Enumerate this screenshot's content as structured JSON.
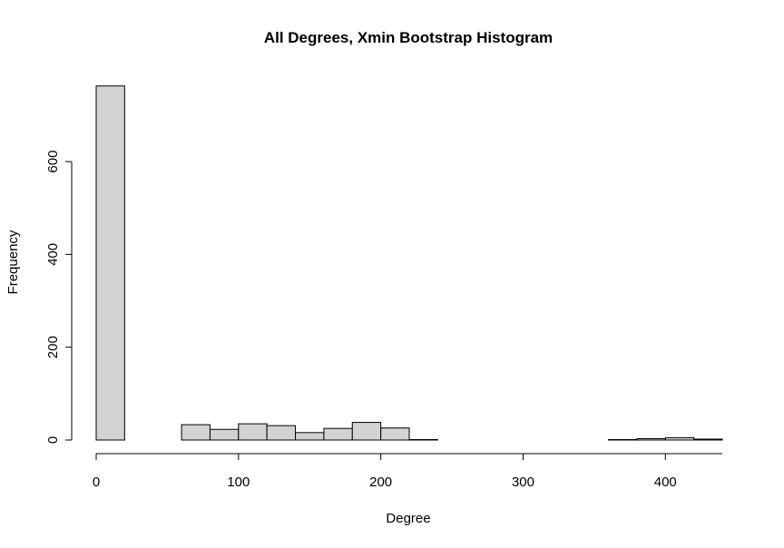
{
  "chart_data": {
    "type": "bar",
    "title": "All Degrees, Xmin Bootstrap Histogram",
    "xlabel": "Degree",
    "ylabel": "Frequency",
    "bin_width": 20,
    "bins": [
      {
        "start": 0,
        "end": 20,
        "count": 763
      },
      {
        "start": 20,
        "end": 40,
        "count": 0
      },
      {
        "start": 40,
        "end": 60,
        "count": 0
      },
      {
        "start": 60,
        "end": 80,
        "count": 33
      },
      {
        "start": 80,
        "end": 100,
        "count": 23
      },
      {
        "start": 100,
        "end": 120,
        "count": 35
      },
      {
        "start": 120,
        "end": 140,
        "count": 31
      },
      {
        "start": 140,
        "end": 160,
        "count": 16
      },
      {
        "start": 160,
        "end": 180,
        "count": 25
      },
      {
        "start": 180,
        "end": 200,
        "count": 38
      },
      {
        "start": 200,
        "end": 220,
        "count": 26
      },
      {
        "start": 220,
        "end": 240,
        "count": 1
      },
      {
        "start": 240,
        "end": 260,
        "count": 0
      },
      {
        "start": 260,
        "end": 280,
        "count": 0
      },
      {
        "start": 280,
        "end": 300,
        "count": 0
      },
      {
        "start": 300,
        "end": 320,
        "count": 0
      },
      {
        "start": 320,
        "end": 340,
        "count": 0
      },
      {
        "start": 340,
        "end": 360,
        "count": 0
      },
      {
        "start": 360,
        "end": 380,
        "count": 1
      },
      {
        "start": 380,
        "end": 400,
        "count": 3
      },
      {
        "start": 400,
        "end": 420,
        "count": 5
      },
      {
        "start": 420,
        "end": 440,
        "count": 2
      }
    ],
    "xlim": [
      0,
      440
    ],
    "ylim": [
      0,
      763
    ],
    "x_ticks": [
      0,
      100,
      200,
      300,
      400
    ],
    "y_ticks": [
      0,
      200,
      400,
      600
    ],
    "bar_fill": "#d3d3d3",
    "bar_stroke": "#000000",
    "grid": false
  }
}
